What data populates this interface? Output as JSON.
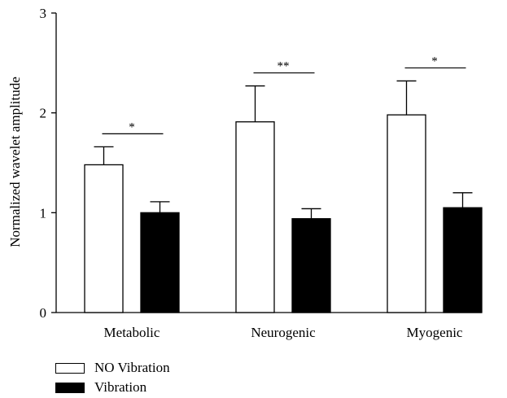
{
  "chart_data": {
    "type": "bar",
    "title": "",
    "xlabel": "",
    "ylabel": "Normalized wavelet amplitude",
    "ylim": [
      0,
      3
    ],
    "yticks": [
      "0",
      "1",
      "2",
      "3"
    ],
    "categories": [
      "Metabolic",
      "Neurogenic",
      "Myogenic"
    ],
    "series": [
      {
        "name": "NO Vibration",
        "color": "#ffffff",
        "values": [
          1.48,
          1.91,
          1.98
        ],
        "error": [
          0.18,
          0.36,
          0.34
        ]
      },
      {
        "name": "Vibration",
        "color": "#000000",
        "values": [
          1.0,
          0.94,
          1.05
        ],
        "error": [
          0.11,
          0.1,
          0.15
        ]
      }
    ],
    "significance": [
      "*",
      "**",
      "*"
    ],
    "grid": false,
    "legend_position": "bottom-left"
  }
}
